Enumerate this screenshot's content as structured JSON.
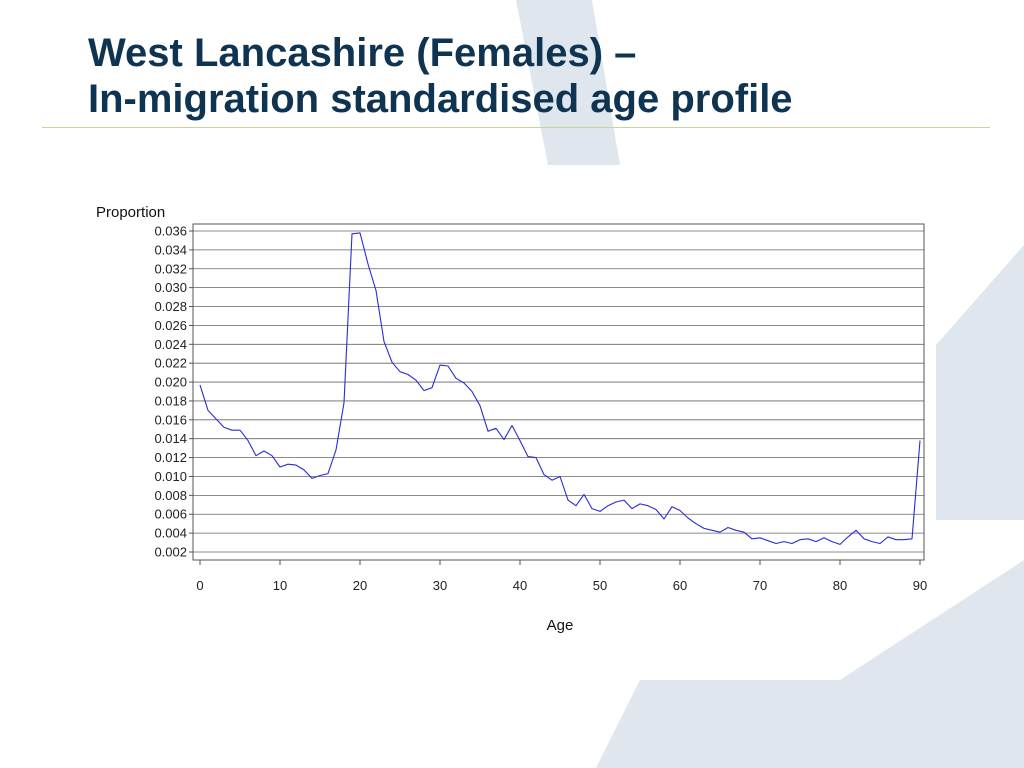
{
  "slide": {
    "title_line1": "West Lancashire (Females) –",
    "title_line2": "In-migration standardised age profile"
  },
  "colors": {
    "title": "#0f3452",
    "rule": "#c9d39a",
    "series": "#2b2bd6",
    "decor": "#dfe6ee"
  },
  "chart_data": {
    "type": "line",
    "xlabel": "Age",
    "ylabel": "Proportion",
    "xlim": [
      0,
      90
    ],
    "ylim": [
      0.001,
      0.0365
    ],
    "x_ticks": [
      0,
      10,
      20,
      30,
      40,
      50,
      60,
      70,
      80,
      90
    ],
    "y_ticks": [
      "0.002",
      "0.004",
      "0.006",
      "0.008",
      "0.010",
      "0.012",
      "0.014",
      "0.016",
      "0.018",
      "0.020",
      "0.022",
      "0.024",
      "0.026",
      "0.028",
      "0.030",
      "0.032",
      "0.034",
      "0.036"
    ],
    "grid": "horizontal",
    "legend": "none",
    "series": [
      {
        "x": [
          0,
          1,
          2,
          3,
          4,
          5,
          6,
          7,
          8,
          9,
          10,
          11,
          12,
          13,
          14,
          15,
          16,
          17,
          18,
          19,
          20,
          21,
          22,
          23,
          24,
          25,
          26,
          27,
          28,
          29,
          30,
          31,
          32,
          33,
          34,
          35,
          36,
          37,
          38,
          39,
          40,
          41,
          42,
          43,
          44,
          45,
          46,
          47,
          48,
          49,
          50,
          51,
          52,
          53,
          54,
          55,
          56,
          57,
          58,
          59,
          60,
          61,
          62,
          63,
          64,
          65,
          66,
          67,
          68,
          69,
          70,
          71,
          72,
          73,
          74,
          75,
          76,
          77,
          78,
          79,
          80,
          81,
          82,
          83,
          84,
          85,
          86,
          87,
          88,
          89,
          90
        ],
        "y": [
          0.0197,
          0.017,
          0.0161,
          0.0152,
          0.0149,
          0.0149,
          0.0138,
          0.0122,
          0.0127,
          0.0122,
          0.011,
          0.0113,
          0.0112,
          0.0107,
          0.0098,
          0.0101,
          0.0103,
          0.0128,
          0.0178,
          0.0357,
          0.0358,
          0.0325,
          0.0297,
          0.0243,
          0.0221,
          0.0211,
          0.0208,
          0.0202,
          0.0191,
          0.0194,
          0.0218,
          0.0217,
          0.0204,
          0.0199,
          0.019,
          0.0175,
          0.0148,
          0.0151,
          0.0139,
          0.0154,
          0.0138,
          0.0121,
          0.012,
          0.0102,
          0.0096,
          0.01,
          0.0075,
          0.0069,
          0.0081,
          0.0066,
          0.0063,
          0.0069,
          0.0073,
          0.0075,
          0.0066,
          0.0071,
          0.0069,
          0.0065,
          0.0055,
          0.0068,
          0.0064,
          0.0056,
          0.005,
          0.0045,
          0.0043,
          0.0041,
          0.0046,
          0.0043,
          0.0041,
          0.0034,
          0.0035,
          0.0032,
          0.0029,
          0.0031,
          0.0029,
          0.0033,
          0.0034,
          0.0031,
          0.0035,
          0.0031,
          0.0028,
          0.0036,
          0.0043,
          0.0034,
          0.0031,
          0.0029,
          0.0036,
          0.0033,
          0.0033,
          0.0034,
          0.0138
        ]
      }
    ]
  }
}
